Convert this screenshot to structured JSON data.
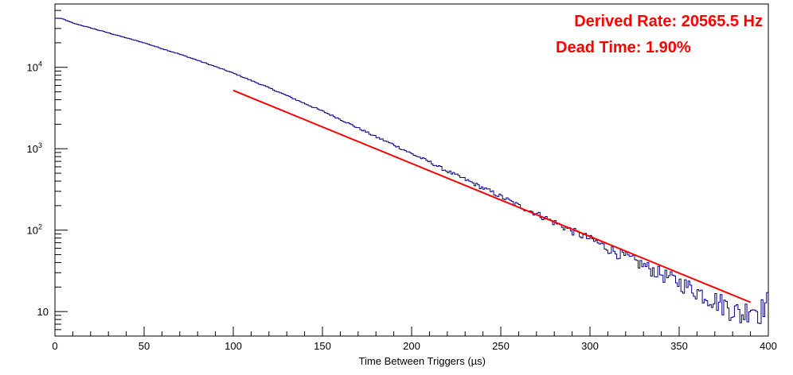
{
  "chart_data": {
    "type": "line",
    "title": "",
    "xlabel": "Time Between Triggers (µs)",
    "ylabel": "",
    "xlim": [
      0,
      400
    ],
    "ylim": [
      5,
      60000
    ],
    "y_scale": "log",
    "grid": false,
    "x_ticks": [
      "0",
      "50",
      "100",
      "150",
      "200",
      "250",
      "300",
      "350",
      "400"
    ],
    "y_ticks": [
      {
        "value": 10,
        "base": "10",
        "exp": ""
      },
      {
        "value": 100,
        "base": "10",
        "exp": "2"
      },
      {
        "value": 1000,
        "base": "10",
        "exp": "3"
      },
      {
        "value": 10000,
        "base": "10",
        "exp": "4"
      }
    ],
    "annotations": [
      {
        "text": "Derived Rate: 20565.5 Hz",
        "color": "#ff0000"
      },
      {
        "text": "Dead Time: 1.90%",
        "color": "#ff0000"
      }
    ],
    "series": [
      {
        "style": "histogram",
        "color": "#000080",
        "x": [
          0,
          2,
          4,
          6,
          8,
          10,
          20,
          30,
          40,
          50,
          60,
          70,
          80,
          90,
          100,
          110,
          120,
          130,
          140,
          150,
          160,
          170,
          180,
          190,
          200,
          210,
          220,
          230,
          240,
          250,
          260,
          270,
          280,
          290,
          300,
          310,
          320,
          330,
          340,
          350,
          360,
          370,
          380,
          385,
          390,
          395,
          400
        ],
        "y": [
          40000,
          40000,
          39500,
          38000,
          36500,
          35000,
          30500,
          26500,
          23000,
          20000,
          17000,
          14500,
          12200,
          10200,
          8500,
          6900,
          5600,
          4500,
          3600,
          2900,
          2300,
          1800,
          1400,
          1120,
          870,
          690,
          530,
          420,
          330,
          260,
          200,
          160,
          125,
          98,
          78,
          60,
          47,
          37,
          29,
          23,
          18,
          14,
          11,
          9,
          12,
          10,
          14
        ]
      },
      {
        "style": "fit",
        "color": "#ff0000",
        "x": [
          100,
          390
        ],
        "y": [
          5200,
          13
        ]
      }
    ]
  }
}
